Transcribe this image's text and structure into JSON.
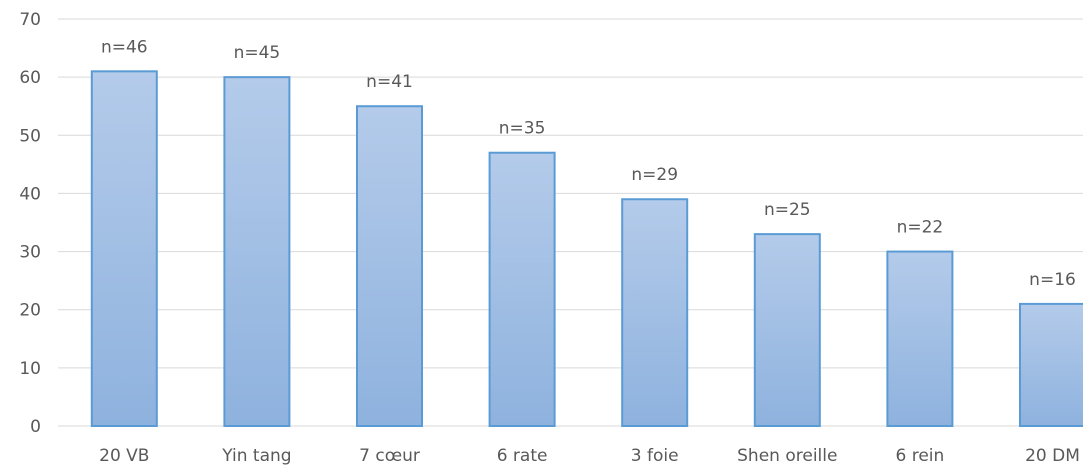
{
  "chart_data": {
    "type": "bar",
    "categories": [
      "20 VB",
      "Yin tang",
      "7 cœur",
      "6 rate",
      "3 foie",
      "Shen oreille",
      "6 rein",
      "20 DM"
    ],
    "values": [
      61,
      60,
      55,
      47,
      39,
      33,
      30,
      21
    ],
    "data_labels": [
      "n=46",
      "n=45",
      "n=41",
      "n=35",
      "n=29",
      "n=25",
      "n=22",
      "n=16"
    ],
    "ylim": [
      0,
      70
    ],
    "yticks": [
      "0",
      "10",
      "20",
      "30",
      "40",
      "50",
      "60",
      "70"
    ],
    "title": "",
    "xlabel": "",
    "ylabel": "",
    "grid": true,
    "legend": "none",
    "colors": {
      "bar_fill_top": "#b4cbea",
      "bar_fill_bottom": "#8eb2de",
      "bar_stroke": "#5b9bd5",
      "grid": "#d9d9d9",
      "text": "#595959"
    }
  }
}
